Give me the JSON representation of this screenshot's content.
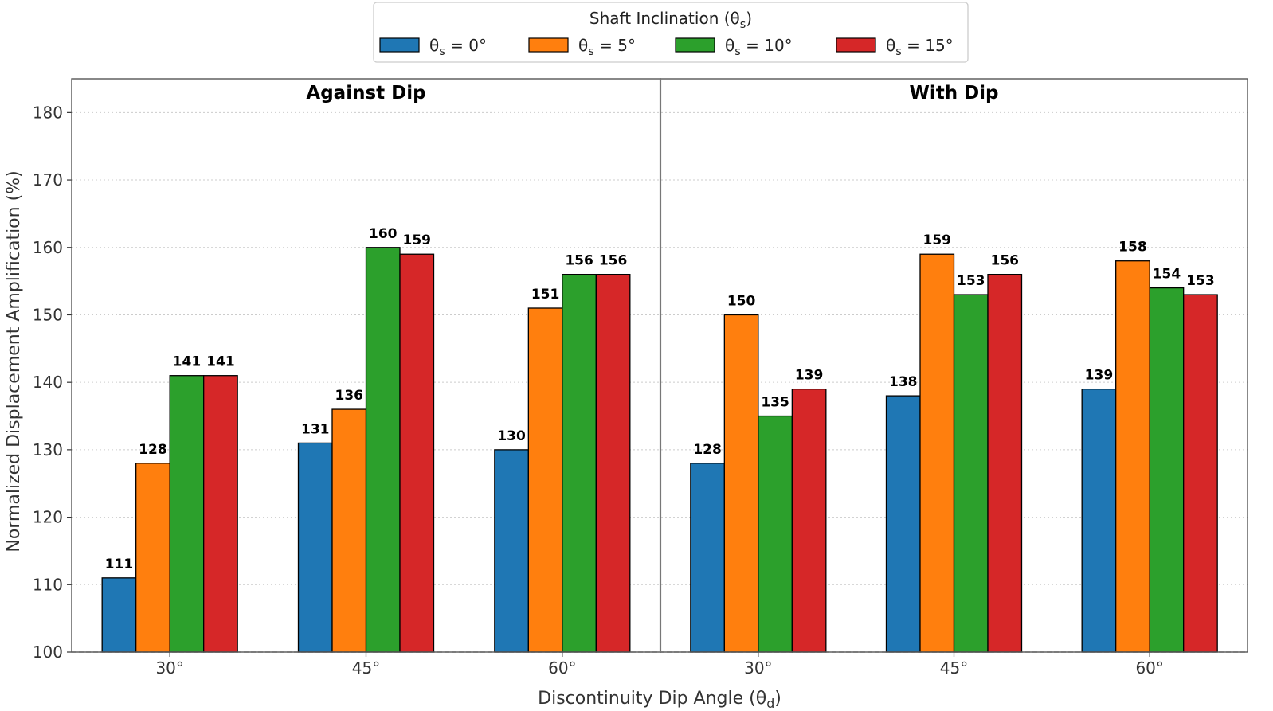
{
  "chart_data": {
    "type": "bar",
    "ylabel": "Normalized Displacement Amplification (%)",
    "xlabel": "Discontinuity Dip Angle (θd)",
    "ylim": [
      100,
      185
    ],
    "yticks": [
      100,
      110,
      120,
      130,
      140,
      150,
      160,
      170,
      180
    ],
    "grid": "horizontal dotted",
    "legend": {
      "title": "Shaft Inclination (θs)",
      "placement": "top-center",
      "entries": [
        "θs = 0°",
        "θs = 5°",
        "θs = 10°",
        "θs = 15°"
      ]
    },
    "colors": [
      "#1f77b4",
      "#ff7f0e",
      "#2ca02c",
      "#d62728"
    ],
    "panels": [
      {
        "title": "Against Dip",
        "categories": [
          "30°",
          "45°",
          "60°"
        ],
        "series": [
          {
            "name": "θs = 0°",
            "values": [
              111,
              131,
              130
            ]
          },
          {
            "name": "θs = 5°",
            "values": [
              128,
              136,
              151
            ]
          },
          {
            "name": "θs = 10°",
            "values": [
              141,
              160,
              156
            ]
          },
          {
            "name": "θs = 15°",
            "values": [
              141,
              159,
              156
            ]
          }
        ]
      },
      {
        "title": "With Dip",
        "categories": [
          "30°",
          "45°",
          "60°"
        ],
        "series": [
          {
            "name": "θs = 0°",
            "values": [
              128,
              138,
              139
            ]
          },
          {
            "name": "θs = 5°",
            "values": [
              150,
              159,
              158
            ]
          },
          {
            "name": "θs = 10°",
            "values": [
              135,
              153,
              154
            ]
          },
          {
            "name": "θs = 15°",
            "values": [
              139,
              156,
              153
            ]
          }
        ]
      }
    ]
  }
}
